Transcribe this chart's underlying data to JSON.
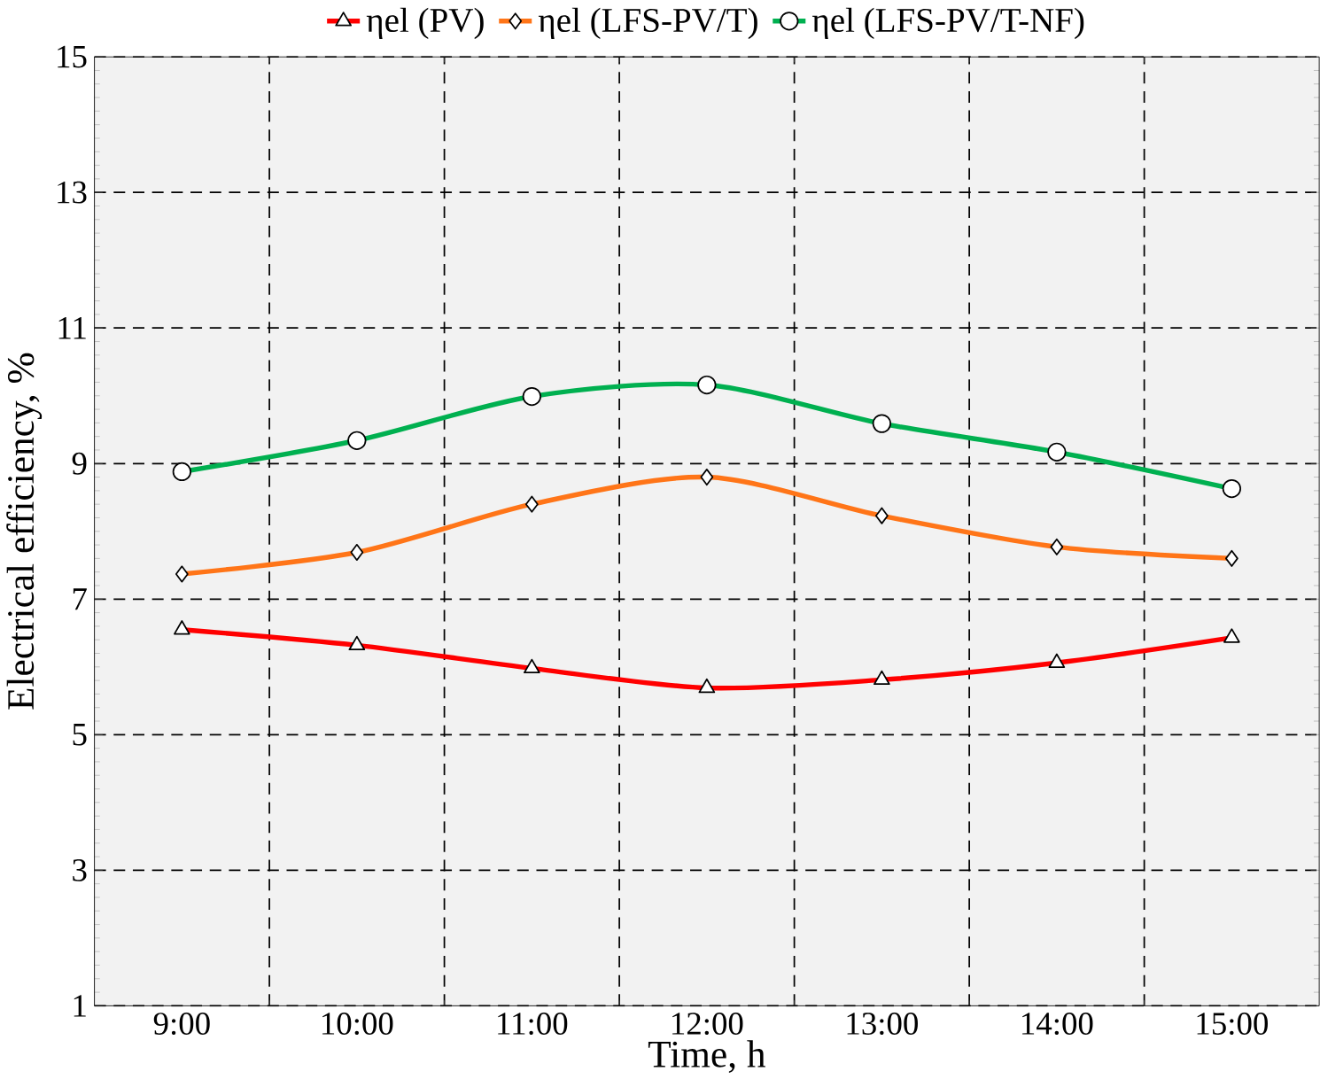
{
  "chart_data": {
    "type": "line",
    "xlabel": "Time, h",
    "ylabel": "Electrical efficiency, %",
    "categories": [
      "9:00",
      "10:00",
      "11:00",
      "12:00",
      "13:00",
      "14:00",
      "15:00"
    ],
    "ylim": [
      1,
      15
    ],
    "yticks": [
      1,
      3,
      5,
      7,
      9,
      11,
      13,
      15
    ],
    "grid": true,
    "legend": "top",
    "line_style": "solid",
    "series": [
      {
        "name": "ηel (PV)",
        "color": "#ff0000",
        "marker": "triangle",
        "values": [
          6.55,
          6.32,
          5.98,
          5.69,
          5.81,
          6.06,
          6.43
        ]
      },
      {
        "name": "ηel (LFS-PV/T)",
        "color": "#ff7518",
        "marker": "diamond",
        "values": [
          7.37,
          7.69,
          8.4,
          8.8,
          8.23,
          7.77,
          7.6
        ]
      },
      {
        "name": "ηel (LFS-PV/T-NF)",
        "color": "#00b050",
        "marker": "circle",
        "values": [
          8.88,
          9.34,
          9.99,
          10.16,
          9.59,
          9.17,
          8.63
        ]
      }
    ]
  }
}
